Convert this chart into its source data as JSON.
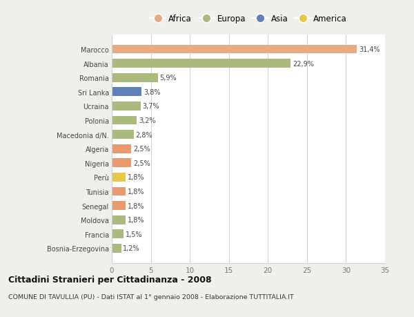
{
  "countries": [
    "Bosnia-Erzegovina",
    "Francia",
    "Moldova",
    "Senegal",
    "Tunisia",
    "Perù",
    "Nigeria",
    "Algeria",
    "Macedonia d/N.",
    "Polonia",
    "Ucraina",
    "Sri Lanka",
    "Romania",
    "Albania",
    "Marocco"
  ],
  "values": [
    1.2,
    1.5,
    1.8,
    1.8,
    1.8,
    1.8,
    2.5,
    2.5,
    2.8,
    3.2,
    3.7,
    3.8,
    5.9,
    22.9,
    31.4
  ],
  "labels": [
    "1,2%",
    "1,5%",
    "1,8%",
    "1,8%",
    "1,8%",
    "1,8%",
    "2,5%",
    "2,5%",
    "2,8%",
    "3,2%",
    "3,7%",
    "3,8%",
    "5,9%",
    "22,9%",
    "31,4%"
  ],
  "colors": [
    "#aab97e",
    "#aab97e",
    "#aab97e",
    "#e89a6e",
    "#e89a6e",
    "#e8c84a",
    "#e89a6e",
    "#e89a6e",
    "#aab97e",
    "#aab97e",
    "#aab97e",
    "#6080bb",
    "#aab97e",
    "#aab97e",
    "#e8aa80"
  ],
  "legend_items": [
    {
      "label": "Africa",
      "color": "#e8aa80"
    },
    {
      "label": "Europa",
      "color": "#aab97e"
    },
    {
      "label": "Asia",
      "color": "#6080bb"
    },
    {
      "label": "America",
      "color": "#e8c84a"
    }
  ],
  "title": "Cittadini Stranieri per Cittadinanza - 2008",
  "subtitle": "COMUNE DI TAVULLIA (PU) - Dati ISTAT al 1° gennaio 2008 - Elaborazione TUTTITALIA.IT",
  "xlim": [
    0,
    35
  ],
  "xticks": [
    0,
    5,
    10,
    15,
    20,
    25,
    30,
    35
  ],
  "background_color": "#efefeb",
  "plot_bg_color": "#ffffff",
  "grid_color": "#d0d0d0",
  "label_color": "#444444",
  "tick_color": "#777777"
}
